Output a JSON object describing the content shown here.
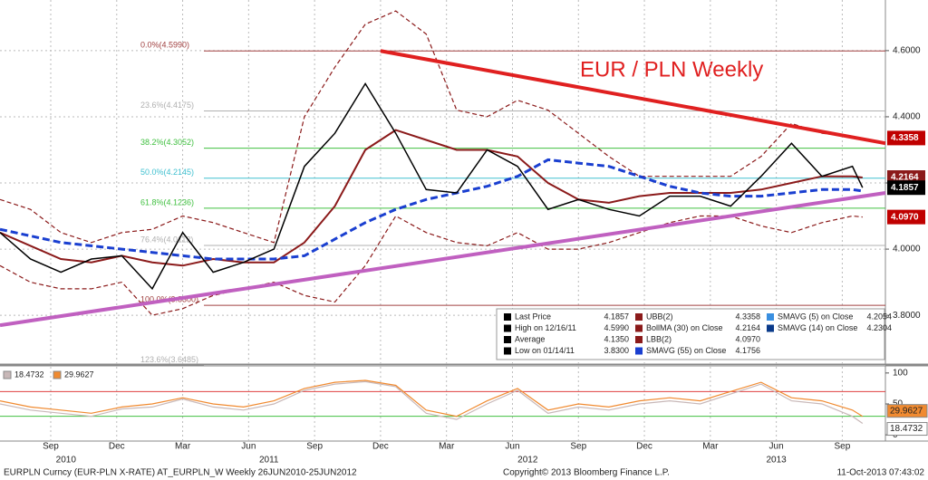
{
  "chart_data": [
    {
      "type": "line",
      "title": "EUR / PLN Weekly",
      "x": [
        0,
        6,
        12,
        18,
        24,
        30,
        36,
        42,
        48,
        54,
        60,
        66,
        72,
        78,
        84,
        90,
        96,
        102,
        108,
        114,
        120,
        126,
        132,
        138,
        144,
        150,
        156,
        162,
        168,
        170
      ],
      "xlim": [
        0,
        174.5
      ],
      "xticks": [
        {
          "value": 10,
          "label": "Sep"
        },
        {
          "value": 23,
          "label": "Dec"
        },
        {
          "value": 36,
          "label": "Mar"
        },
        {
          "value": 49,
          "label": "Jun"
        },
        {
          "value": 62,
          "label": "Sep"
        },
        {
          "value": 75,
          "label": "Dec"
        },
        {
          "value": 88,
          "label": "Mar"
        },
        {
          "value": 101,
          "label": "Jun"
        },
        {
          "value": 114,
          "label": "Sep"
        },
        {
          "value": 127,
          "label": "Dec"
        },
        {
          "value": 140,
          "label": "Mar"
        },
        {
          "value": 153,
          "label": "Jun"
        },
        {
          "value": 166,
          "label": "Sep"
        }
      ],
      "year_labels": [
        {
          "value": 13,
          "label": "2010"
        },
        {
          "value": 53,
          "label": "2011"
        },
        {
          "value": 104,
          "label": "2012"
        },
        {
          "value": 153,
          "label": "2013"
        }
      ],
      "ylim": [
        3.658,
        4.753
      ],
      "yticks": [
        {
          "value": 3.8,
          "label": "3.8000"
        },
        {
          "value": 4.0,
          "label": "4.0000"
        },
        {
          "value": 4.2,
          "label": "4.2000"
        },
        {
          "value": 4.4,
          "label": "4.4000"
        },
        {
          "value": 4.6,
          "label": "4.6000"
        }
      ],
      "grid": true,
      "series": [
        {
          "name": "UBB(2)",
          "color": "#8b1a1a",
          "dash": true,
          "values": [
            4.15,
            4.12,
            4.05,
            4.02,
            4.05,
            4.06,
            4.1,
            4.08,
            4.05,
            4.02,
            4.4,
            4.55,
            4.68,
            4.72,
            4.65,
            4.42,
            4.4,
            4.45,
            4.42,
            4.35,
            4.28,
            4.22,
            4.22,
            4.22,
            4.22,
            4.28,
            4.38,
            4.35,
            4.34,
            4.3358
          ]
        },
        {
          "name": "LBB(2)",
          "color": "#8b1a1a",
          "dash": true,
          "values": [
            3.95,
            3.9,
            3.88,
            3.88,
            3.9,
            3.8,
            3.82,
            3.86,
            3.88,
            3.9,
            3.86,
            3.84,
            3.95,
            4.1,
            4.05,
            4.02,
            4.01,
            4.05,
            4.0,
            4.0,
            4.02,
            4.05,
            4.08,
            4.1,
            4.1,
            4.07,
            4.05,
            4.08,
            4.1,
            4.097
          ]
        },
        {
          "name": "BollMA (30) on Close",
          "color": "#8b1a1a",
          "dash": false,
          "width": 2,
          "values": [
            4.05,
            4.01,
            3.97,
            3.96,
            3.98,
            3.96,
            3.95,
            3.97,
            3.96,
            3.96,
            4.02,
            4.13,
            4.3,
            4.36,
            4.33,
            4.3,
            4.3,
            4.28,
            4.2,
            4.15,
            4.14,
            4.16,
            4.17,
            4.17,
            4.17,
            4.18,
            4.2,
            4.22,
            4.22,
            4.2164
          ]
        },
        {
          "name": "SMAVG (55) on Close",
          "color": "#1a3fd0",
          "dash": true,
          "width": 3,
          "values": [
            4.06,
            4.04,
            4.02,
            4.01,
            4.0,
            3.99,
            3.98,
            3.97,
            3.97,
            3.97,
            3.98,
            4.03,
            4.08,
            4.12,
            4.15,
            4.17,
            4.19,
            4.22,
            4.27,
            4.26,
            4.25,
            4.22,
            4.19,
            4.17,
            4.16,
            4.16,
            4.17,
            4.18,
            4.18,
            4.1756
          ]
        },
        {
          "name": "Last Price",
          "color": "#000000",
          "dash": false,
          "width": 1.5,
          "values": [
            4.05,
            3.97,
            3.93,
            3.97,
            3.98,
            3.88,
            4.05,
            3.93,
            3.96,
            4.0,
            4.25,
            4.35,
            4.5,
            4.35,
            4.18,
            4.17,
            4.3,
            4.25,
            4.12,
            4.15,
            4.12,
            4.1,
            4.16,
            4.16,
            4.13,
            4.22,
            4.32,
            4.22,
            4.25,
            4.1857
          ]
        }
      ],
      "trendlines": [
        {
          "color": "#e02020",
          "x": [
            75,
            174.5
          ],
          "y": [
            4.599,
            4.32
          ]
        },
        {
          "color": "#c060c0",
          "x": [
            0,
            174.5
          ],
          "y": [
            3.77,
            4.17
          ]
        }
      ],
      "fib_levels": [
        {
          "value": 4.599,
          "label": "0.0%(4.5990)",
          "color": "#a04040"
        },
        {
          "value": 4.4175,
          "label": "23.6%(4.4175)",
          "color": "#b0b0b0"
        },
        {
          "value": 4.3052,
          "label": "38.2%(4.3052)",
          "color": "#40c040"
        },
        {
          "value": 4.2145,
          "label": "50.0%(4.2145)",
          "color": "#40c0d0"
        },
        {
          "value": 4.1236,
          "label": "61.8%(4.1236)",
          "color": "#40c040"
        },
        {
          "value": 4.0112,
          "label": "76.4%(4.0112)",
          "color": "#b0b0b0"
        },
        {
          "value": 3.83,
          "label": "100.0%(3.8300)",
          "color": "#a04040"
        },
        {
          "value": 3.6485,
          "label": "123.6%(3.6485)",
          "color": "#b0b0b0"
        }
      ],
      "price_tags": [
        {
          "value": 4.3358,
          "color": "#c00000"
        },
        {
          "value": 4.2164,
          "color": "#8b1a1a"
        },
        {
          "value": 4.1857,
          "color": "#000000"
        },
        {
          "value": 4.097,
          "label": "4.0970",
          "color": "#c00000"
        }
      ],
      "legend": [
        [
          "Last Price",
          "4.1857"
        ],
        [
          "High on 12/16/11",
          "4.5990"
        ],
        [
          "Average",
          "4.1350"
        ],
        [
          "Low on 01/14/11",
          "3.8300"
        ],
        [
          "UBB(2)",
          "4.3358"
        ],
        [
          "BollMA (30) on Close",
          "4.2164"
        ],
        [
          "LBB(2)",
          "4.0970"
        ],
        [
          "SMAVG (55) on Close",
          "4.1756"
        ],
        [
          "SMAVG (5) on Close",
          "4.2054"
        ],
        [
          "SMAVG (14) on Close",
          "4.2304"
        ]
      ]
    },
    {
      "type": "line",
      "x": [
        0,
        6,
        12,
        18,
        24,
        30,
        36,
        42,
        48,
        54,
        60,
        66,
        72,
        78,
        84,
        90,
        96,
        102,
        108,
        114,
        120,
        126,
        132,
        138,
        144,
        150,
        156,
        162,
        168,
        170
      ],
      "xlim": [
        0,
        174.5
      ],
      "ylim": [
        -10,
        110
      ],
      "yticks": [
        0,
        50,
        100
      ],
      "levels": [
        {
          "value": 70,
          "color": "#e04040"
        },
        {
          "value": 30,
          "color": "#40c040"
        }
      ],
      "series": [
        {
          "name": "18.4732",
          "color": "#c8b8b8",
          "values": [
            50,
            40,
            35,
            30,
            42,
            45,
            58,
            45,
            40,
            50,
            72,
            82,
            86,
            78,
            35,
            25,
            50,
            72,
            35,
            45,
            40,
            50,
            55,
            50,
            66,
            82,
            55,
            50,
            30,
            18.4732
          ]
        },
        {
          "name": "29.9627",
          "color": "#f08a30",
          "values": [
            55,
            45,
            40,
            35,
            45,
            50,
            60,
            50,
            45,
            55,
            75,
            85,
            88,
            80,
            40,
            30,
            55,
            75,
            40,
            50,
            45,
            55,
            60,
            55,
            70,
            85,
            60,
            55,
            40,
            29.9627
          ]
        }
      ]
    }
  ],
  "footer": {
    "left": "EURPLN Curncy (EUR-PLN X-RATE) AT_EURPLN_W  Weekly 26JUN2010-25JUN2012",
    "center": "Copyright© 2013 Bloomberg Finance L.P.",
    "right": "11-Oct-2013 07:43:02"
  }
}
